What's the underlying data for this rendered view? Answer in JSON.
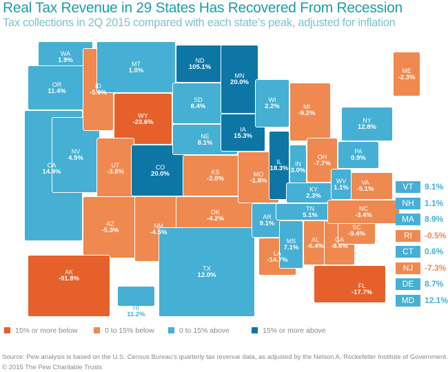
{
  "title": "Real Tax Revenue in 29 States Has Recovered From Recession",
  "subtitle": "Tax collections in 2Q 2015 compared with each state’s peak, adjusted for inflation",
  "colors": {
    "dark_orange": "#e5602a",
    "light_orange": "#f0894f",
    "light_blue": "#46afd4",
    "dark_blue": "#0d76a5"
  },
  "legend": [
    {
      "label": "15% or more below",
      "cat": "dark_orange"
    },
    {
      "label": "0 to 15% below",
      "cat": "light_orange"
    },
    {
      "label": "0 to 15% above",
      "cat": "light_blue"
    },
    {
      "label": "15% or more above",
      "cat": "dark_blue"
    }
  ],
  "states": [
    {
      "abbr": "WA",
      "value": "1.9%",
      "cat": "light_blue"
    },
    {
      "abbr": "OR",
      "value": "11.4%",
      "cat": "light_blue"
    },
    {
      "abbr": "CA",
      "value": "14.4%",
      "cat": "light_blue"
    },
    {
      "abbr": "NV",
      "value": "4.5%",
      "cat": "light_blue"
    },
    {
      "abbr": "ID",
      "value": "-5.9%",
      "cat": "light_orange"
    },
    {
      "abbr": "MT",
      "value": "1.0%",
      "cat": "light_blue"
    },
    {
      "abbr": "WY",
      "value": "-23.6%",
      "cat": "dark_orange"
    },
    {
      "abbr": "UT",
      "value": "-3.8%",
      "cat": "light_orange"
    },
    {
      "abbr": "CO",
      "value": "20.0%",
      "cat": "dark_blue"
    },
    {
      "abbr": "AZ",
      "value": "-5.3%",
      "cat": "light_orange"
    },
    {
      "abbr": "NM",
      "value": "-4.5%",
      "cat": "light_orange"
    },
    {
      "abbr": "ND",
      "value": "105.1%",
      "cat": "dark_blue"
    },
    {
      "abbr": "SD",
      "value": "8.4%",
      "cat": "light_blue"
    },
    {
      "abbr": "NE",
      "value": "8.1%",
      "cat": "light_blue"
    },
    {
      "abbr": "KS",
      "value": "-2.0%",
      "cat": "light_orange"
    },
    {
      "abbr": "OK",
      "value": "-4.2%",
      "cat": "light_orange"
    },
    {
      "abbr": "TX",
      "value": "12.0%",
      "cat": "light_blue"
    },
    {
      "abbr": "MN",
      "value": "20.0%",
      "cat": "dark_blue"
    },
    {
      "abbr": "IA",
      "value": "15.3%",
      "cat": "dark_blue"
    },
    {
      "abbr": "MO",
      "value": "-1.8%",
      "cat": "light_orange"
    },
    {
      "abbr": "AR",
      "value": "9.1%",
      "cat": "light_blue"
    },
    {
      "abbr": "LA",
      "value": "-14.7%",
      "cat": "light_orange"
    },
    {
      "abbr": "WI",
      "value": "2.2%",
      "cat": "light_blue"
    },
    {
      "abbr": "IL",
      "value": "18.3%",
      "cat": "dark_blue"
    },
    {
      "abbr": "MI",
      "value": "-9.2%",
      "cat": "light_orange"
    },
    {
      "abbr": "IN",
      "value": "3.0%",
      "cat": "light_blue"
    },
    {
      "abbr": "OH",
      "value": "-7.7%",
      "cat": "light_orange"
    },
    {
      "abbr": "KY",
      "value": "2.3%",
      "cat": "light_blue"
    },
    {
      "abbr": "TN",
      "value": "5.1%",
      "cat": "light_blue"
    },
    {
      "abbr": "MS",
      "value": "7.1%",
      "cat": "light_blue"
    },
    {
      "abbr": "AL",
      "value": "-6.4%",
      "cat": "light_orange"
    },
    {
      "abbr": "GA",
      "value": "-8.6%",
      "cat": "light_orange"
    },
    {
      "abbr": "FL",
      "value": "-17.7%",
      "cat": "dark_orange"
    },
    {
      "abbr": "SC",
      "value": "-9.4%",
      "cat": "light_orange"
    },
    {
      "abbr": "NC",
      "value": "-3.4%",
      "cat": "light_orange"
    },
    {
      "abbr": "VA",
      "value": "-5.1%",
      "cat": "light_orange"
    },
    {
      "abbr": "WV",
      "value": "1.1%",
      "cat": "light_blue"
    },
    {
      "abbr": "PA",
      "value": "0.9%",
      "cat": "light_blue"
    },
    {
      "abbr": "NY",
      "value": "12.8%",
      "cat": "light_blue"
    },
    {
      "abbr": "ME",
      "value": "-2.3%",
      "cat": "light_orange"
    },
    {
      "abbr": "AK",
      "value": "-91.8%",
      "cat": "dark_orange"
    },
    {
      "abbr": "HI",
      "value": "11.2%",
      "cat": "light_blue"
    }
  ],
  "small_states": [
    {
      "abbr": "VT",
      "value": "9.1%",
      "cat": "light_blue"
    },
    {
      "abbr": "NH",
      "value": "1.1%",
      "cat": "light_blue"
    },
    {
      "abbr": "MA",
      "value": "8.9%",
      "cat": "light_blue"
    },
    {
      "abbr": "RI",
      "value": "-0.5%",
      "cat": "light_orange"
    },
    {
      "abbr": "CT",
      "value": "0.6%",
      "cat": "light_blue"
    },
    {
      "abbr": "NJ",
      "value": "-7.3%",
      "cat": "light_orange"
    },
    {
      "abbr": "DE",
      "value": "8.7%",
      "cat": "light_blue"
    },
    {
      "abbr": "MD",
      "value": "12.1%",
      "cat": "light_blue"
    }
  ],
  "source": "Source: Pew analysis is based on the U.S. Census Bureau’s quarterly tax revenue data, as adjusted by the Nelson A. Rockefeller Institute of Government.",
  "copyright": "© 2015 The Pew Charitable Trusts"
}
